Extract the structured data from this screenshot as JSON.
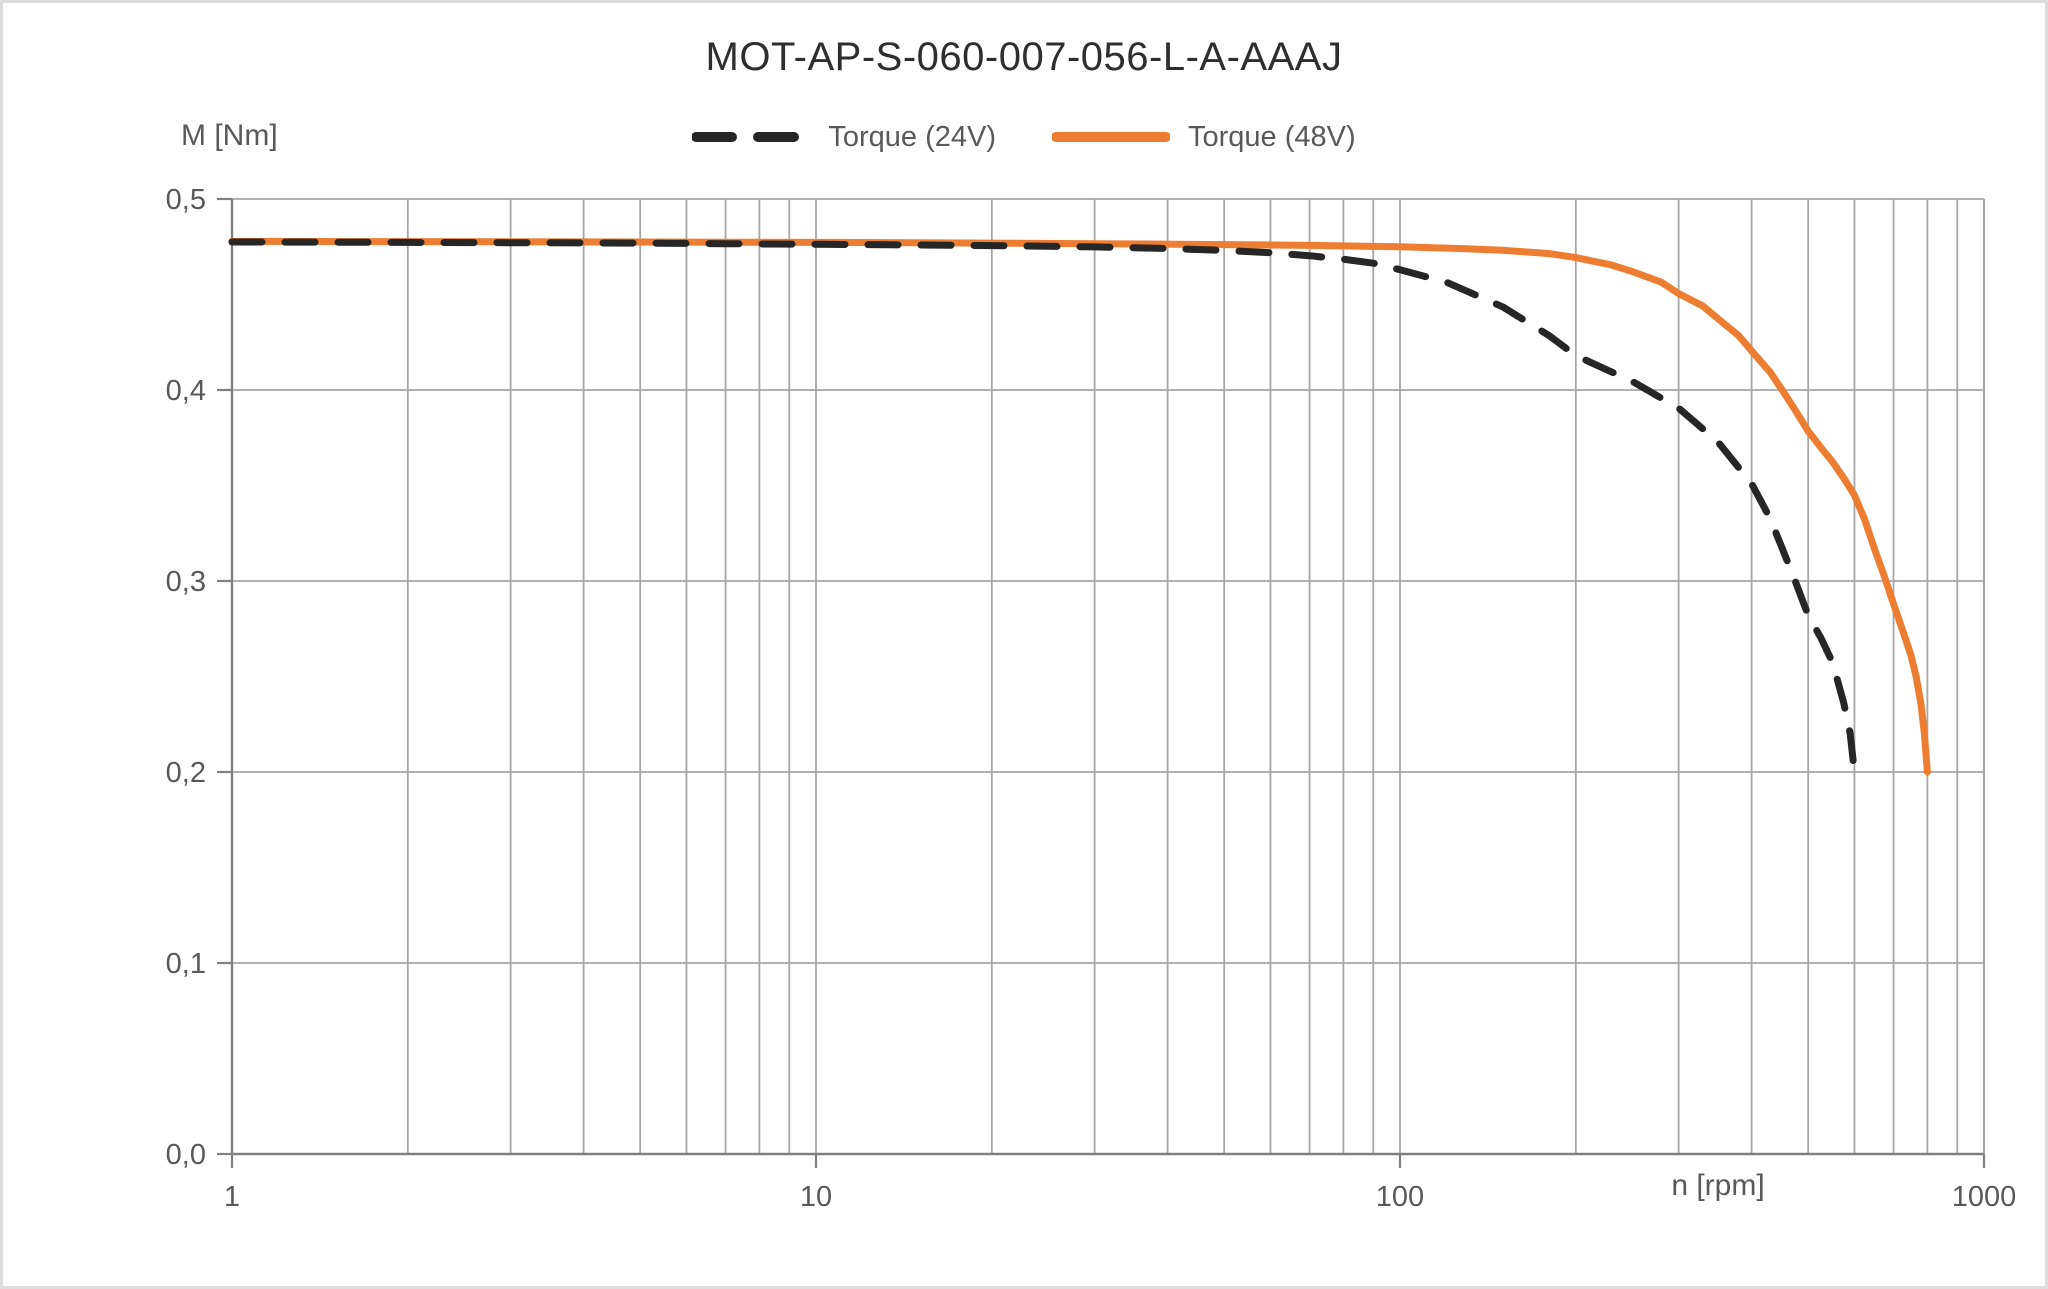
{
  "window": {
    "background": "#ffffff",
    "border_color": "#dcdcdc"
  },
  "chart": {
    "title": "MOT-AP-S-060-007-056-L-A-AAAJ",
    "y_axis_label": "M [Nm]",
    "x_axis_label": "n [rpm]"
  },
  "colors": {
    "grid": "#a6a6a6",
    "axis": "#808080",
    "tick_text": "#595959",
    "title_text": "#2e2e2e",
    "series_24v": "#262626",
    "series_48v": "#ED7D31"
  },
  "chart_data": {
    "type": "line",
    "title": "MOT-AP-S-060-007-056-L-A-AAAJ",
    "xlabel": "n [rpm]",
    "ylabel": "M [Nm]",
    "x_scale": "log",
    "xlim": [
      1,
      1000
    ],
    "ylim": [
      0,
      0.5
    ],
    "grid": "major and log-minor vertical, major horizontal",
    "legend_position": "top-center",
    "x_ticks": [
      {
        "value": 1,
        "label": "1"
      },
      {
        "value": 10,
        "label": "10"
      },
      {
        "value": 100,
        "label": "100"
      },
      {
        "value": 1000,
        "label": "1000"
      }
    ],
    "y_ticks": [
      {
        "value": 0.0,
        "label": "0,0"
      },
      {
        "value": 0.1,
        "label": "0,1"
      },
      {
        "value": 0.2,
        "label": "0,2"
      },
      {
        "value": 0.3,
        "label": "0,3"
      },
      {
        "value": 0.4,
        "label": "0,4"
      },
      {
        "value": 0.5,
        "label": "0,5"
      }
    ],
    "series": [
      {
        "name": "Torque (24V)",
        "color": "#262626",
        "style": "dashed",
        "points": [
          [
            1,
            0.4775
          ],
          [
            1.5,
            0.4774
          ],
          [
            2,
            0.4773
          ],
          [
            3,
            0.4771
          ],
          [
            4,
            0.477
          ],
          [
            5,
            0.4769
          ],
          [
            7,
            0.4766
          ],
          [
            10,
            0.4763
          ],
          [
            15,
            0.4759
          ],
          [
            20,
            0.4756
          ],
          [
            30,
            0.4749
          ],
          [
            40,
            0.4741
          ],
          [
            50,
            0.4731
          ],
          [
            60,
            0.4719
          ],
          [
            70,
            0.4703
          ],
          [
            80,
            0.4685
          ],
          [
            90,
            0.4664
          ],
          [
            100,
            0.463
          ],
          [
            120,
            0.4565
          ],
          [
            150,
            0.4435
          ],
          [
            180,
            0.4285
          ],
          [
            200,
            0.418
          ],
          [
            250,
            0.4045
          ],
          [
            300,
            0.3905
          ],
          [
            350,
            0.373
          ],
          [
            400,
            0.351
          ],
          [
            430,
            0.333
          ],
          [
            450,
            0.318
          ],
          [
            475,
            0.3
          ],
          [
            500,
            0.282
          ],
          [
            525,
            0.2705
          ],
          [
            550,
            0.2575
          ],
          [
            575,
            0.2365
          ],
          [
            590,
            0.22
          ],
          [
            600,
            0.2
          ]
        ]
      },
      {
        "name": "Torque (48V)",
        "color": "#ED7D31",
        "style": "solid",
        "points": [
          [
            1,
            0.4778
          ],
          [
            2,
            0.4777
          ],
          [
            3,
            0.4776
          ],
          [
            5,
            0.4775
          ],
          [
            7,
            0.4774
          ],
          [
            10,
            0.4773
          ],
          [
            15,
            0.4771
          ],
          [
            20,
            0.4769
          ],
          [
            30,
            0.4766
          ],
          [
            50,
            0.4761
          ],
          [
            70,
            0.4757
          ],
          [
            100,
            0.475
          ],
          [
            130,
            0.474
          ],
          [
            150,
            0.4732
          ],
          [
            180,
            0.4714
          ],
          [
            200,
            0.4693
          ],
          [
            230,
            0.4655
          ],
          [
            250,
            0.462
          ],
          [
            280,
            0.4565
          ],
          [
            300,
            0.4505
          ],
          [
            330,
            0.444
          ],
          [
            350,
            0.4375
          ],
          [
            380,
            0.4285
          ],
          [
            400,
            0.4205
          ],
          [
            430,
            0.4095
          ],
          [
            450,
            0.4005
          ],
          [
            475,
            0.3895
          ],
          [
            500,
            0.3785
          ],
          [
            530,
            0.3685
          ],
          [
            550,
            0.3625
          ],
          [
            575,
            0.354
          ],
          [
            600,
            0.345
          ],
          [
            625,
            0.332
          ],
          [
            650,
            0.3165
          ],
          [
            675,
            0.3025
          ],
          [
            700,
            0.288
          ],
          [
            725,
            0.2745
          ],
          [
            750,
            0.261
          ],
          [
            765,
            0.25
          ],
          [
            780,
            0.2355
          ],
          [
            790,
            0.221
          ],
          [
            795,
            0.2105
          ],
          [
            800,
            0.2
          ]
        ]
      }
    ]
  }
}
